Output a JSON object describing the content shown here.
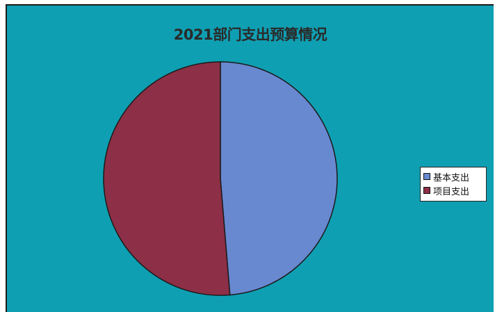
{
  "chart_data": {
    "type": "pie",
    "title": "2021部门支出预算情况",
    "categories": [
      "基本支出",
      "项目支出"
    ],
    "values": [
      48.7,
      51.3
    ],
    "start_angle_deg": 0,
    "direction": "clockwise",
    "legend_position": "right"
  },
  "colors": {
    "background": "#0f9fb2",
    "slice_0": "#6888d0",
    "slice_1": "#8d2f46",
    "outline": "#1a1a1a"
  }
}
